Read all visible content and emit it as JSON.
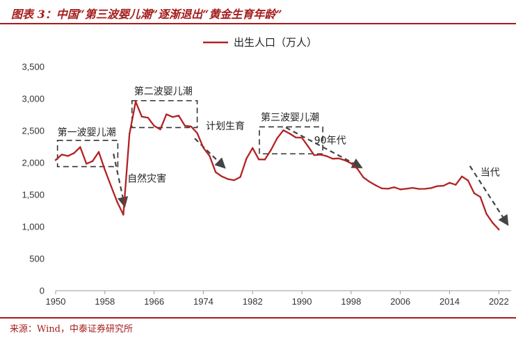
{
  "figure": {
    "title": "图表 3：中国“第三波婴儿潮”逐渐退出“黄金生育年龄”",
    "source": "来源：Wind，中泰证券研究所"
  },
  "colors": {
    "accent": "#a51c1c",
    "line": "#b22222",
    "box": "#333333",
    "arrow": "#444444"
  },
  "chart_data": {
    "type": "line",
    "title": "",
    "xlabel": "",
    "ylabel": "",
    "xlim": [
      1950,
      2024
    ],
    "ylim": [
      0,
      3500
    ],
    "x_ticks": [
      "1950",
      "1958",
      "1966",
      "1974",
      "1982",
      "1990",
      "1998",
      "2006",
      "2014",
      "2022"
    ],
    "y_ticks": [
      "0",
      "500",
      "1,000",
      "1,500",
      "2,000",
      "2,500",
      "3,000",
      "3,500"
    ],
    "legend": {
      "placement": "top-center"
    },
    "grid": false,
    "series": [
      {
        "name": "出生人口（万人）",
        "x": [
          1950,
          1951,
          1952,
          1953,
          1954,
          1955,
          1956,
          1957,
          1958,
          1959,
          1960,
          1961,
          1962,
          1963,
          1964,
          1965,
          1966,
          1967,
          1968,
          1969,
          1970,
          1971,
          1972,
          1973,
          1974,
          1975,
          1976,
          1977,
          1978,
          1979,
          1980,
          1981,
          1982,
          1983,
          1984,
          1985,
          1986,
          1987,
          1988,
          1989,
          1990,
          1991,
          1992,
          1993,
          1994,
          1995,
          1996,
          1997,
          1998,
          1999,
          2000,
          2001,
          2002,
          2003,
          2004,
          2005,
          2006,
          2007,
          2008,
          2009,
          2010,
          2011,
          2012,
          2013,
          2014,
          2015,
          2016,
          2017,
          2018,
          2019,
          2020,
          2021,
          2022
        ],
        "values": [
          2042,
          2128,
          2105,
          2151,
          2245,
          1984,
          2025,
          2169,
          1889,
          1635,
          1389,
          1188,
          2451,
          2954,
          2721,
          2704,
          2577,
          2521,
          2757,
          2715,
          2736,
          2578,
          2566,
          2463,
          2235,
          2109,
          1853,
          1786,
          1745,
          1727,
          1776,
          2064,
          2230,
          2052,
          2050,
          2202,
          2384,
          2508,
          2457,
          2396,
          2391,
          2258,
          2119,
          2126,
          2104,
          2063,
          2067,
          2038,
          1991,
          1909,
          1771,
          1702,
          1647,
          1599,
          1593,
          1617,
          1584,
          1594,
          1608,
          1591,
          1592,
          1604,
          1635,
          1640,
          1687,
          1655,
          1786,
          1723,
          1523,
          1465,
          1200,
          1062,
          956
        ]
      }
    ],
    "annotations": [
      {
        "text": "第一波婴儿潮",
        "box_x": [
          1950.3,
          1960.1
        ],
        "box_y": [
          1940,
          2350
        ]
      },
      {
        "text": "第二波婴儿潮",
        "box_x": [
          1962.4,
          1973.0
        ],
        "box_y": [
          2550,
          2970
        ]
      },
      {
        "text": "第三波婴儿潮",
        "box_x": [
          1983.1,
          1993.4
        ],
        "box_y": [
          2140,
          2560
        ]
      },
      {
        "text": "自然灾害",
        "arrow_from": [
          1959.4,
          2140
        ],
        "arrow_to": [
          1961.2,
          1330
        ]
      },
      {
        "text": "计划生育",
        "arrow_from": [
          1972.6,
          2380
        ],
        "arrow_to": [
          1977.4,
          1930
        ]
      },
      {
        "text": "90年代",
        "arrow_from": [
          1987.4,
          2550
        ],
        "arrow_to": [
          1999.6,
          1930
        ]
      },
      {
        "text": "当代",
        "arrow_from": [
          2017.3,
          1950
        ],
        "arrow_to": [
          2023.4,
          1040
        ]
      }
    ]
  }
}
